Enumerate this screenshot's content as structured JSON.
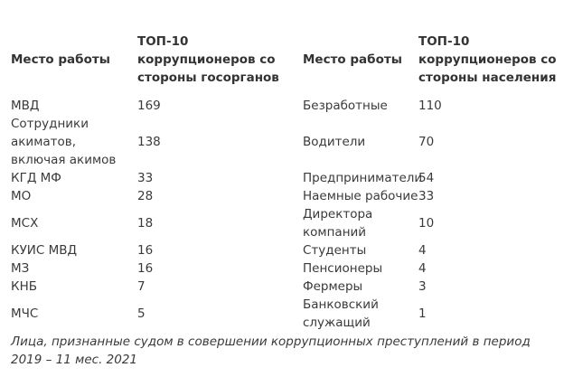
{
  "table": {
    "headers": {
      "left_place": "Место работы",
      "left_top": "ТОП-10 коррупционеров со стороны госорганов",
      "right_place": "Место работы",
      "right_top": "ТОП-10 коррупционеров со стороны населения"
    },
    "rows": [
      {
        "left_place": "МВД",
        "left_value": "169",
        "right_place": "Безработные",
        "right_value": "110"
      },
      {
        "left_place": "Сотрудники акиматов, включая акимов",
        "left_value": "138",
        "right_place": "Водители",
        "right_value": "70"
      },
      {
        "left_place": "КГД МФ",
        "left_value": "33",
        "right_place": "Предприниматели",
        "right_value": "54"
      },
      {
        "left_place": "МО",
        "left_value": "28",
        "right_place": "Наемные рабочие",
        "right_value": "33"
      },
      {
        "left_place": "МСХ",
        "left_value": "18",
        "right_place": "Директора компаний",
        "right_value": "10"
      },
      {
        "left_place": "КУИС МВД",
        "left_value": "16",
        "right_place": "Студенты",
        "right_value": "4"
      },
      {
        "left_place": "МЗ",
        "left_value": "16",
        "right_place": "Пенсионеры",
        "right_value": "4"
      },
      {
        "left_place": "КНБ",
        "left_value": "7",
        "right_place": "Фермеры",
        "right_value": "3"
      },
      {
        "left_place": "МЧС",
        "left_value": "5",
        "right_place": "Банковский служащий",
        "right_value": "1"
      }
    ]
  },
  "caption": "Лица, признанные судом в совершении  коррупционных преступлений в период 2019 – 11 мес. 2021"
}
